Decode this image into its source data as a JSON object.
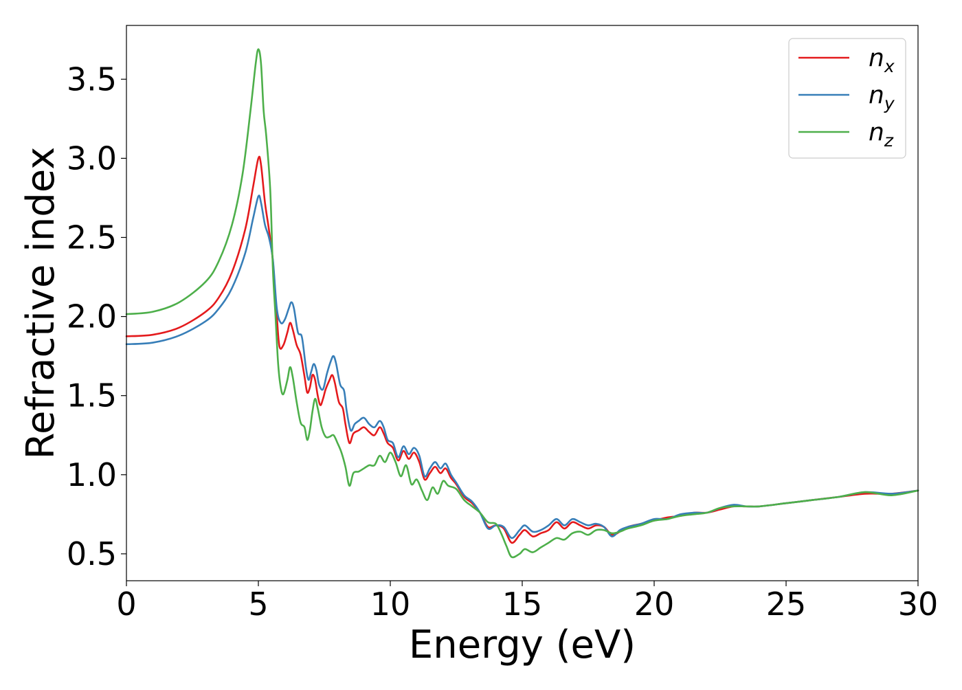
{
  "chart_data": {
    "type": "line",
    "title": "",
    "xlabel": "Energy (eV)",
    "ylabel": "Refractive index",
    "xlim": [
      0,
      30
    ],
    "ylim": [
      0.33,
      3.84
    ],
    "xticks": [
      0,
      5,
      10,
      15,
      20,
      25,
      30
    ],
    "yticks": [
      0.5,
      1.0,
      1.5,
      2.0,
      2.5,
      3.0,
      3.5
    ],
    "xtick_labels": [
      "0",
      "5",
      "10",
      "15",
      "20",
      "25",
      "30"
    ],
    "ytick_labels": [
      "0.5",
      "1.0",
      "1.5",
      "2.0",
      "2.5",
      "3.0",
      "3.5"
    ],
    "grid": false,
    "legend_position": "top-right",
    "series": [
      {
        "name": "n_x",
        "label_base": "n",
        "label_sub": "x",
        "color": "#e41a1c",
        "points": [
          [
            0,
            1.875
          ],
          [
            1,
            1.885
          ],
          [
            2,
            1.93
          ],
          [
            3,
            2.03
          ],
          [
            3.5,
            2.12
          ],
          [
            4,
            2.28
          ],
          [
            4.5,
            2.55
          ],
          [
            4.8,
            2.82
          ],
          [
            5.0,
            3.0
          ],
          [
            5.1,
            2.96
          ],
          [
            5.25,
            2.72
          ],
          [
            5.4,
            2.55
          ],
          [
            5.55,
            2.35
          ],
          [
            5.7,
            2.0
          ],
          [
            5.8,
            1.81
          ],
          [
            5.95,
            1.82
          ],
          [
            6.1,
            1.9
          ],
          [
            6.2,
            1.96
          ],
          [
            6.3,
            1.92
          ],
          [
            6.45,
            1.82
          ],
          [
            6.6,
            1.76
          ],
          [
            6.75,
            1.62
          ],
          [
            6.85,
            1.52
          ],
          [
            6.95,
            1.55
          ],
          [
            7.05,
            1.63
          ],
          [
            7.15,
            1.6
          ],
          [
            7.25,
            1.5
          ],
          [
            7.35,
            1.44
          ],
          [
            7.45,
            1.48
          ],
          [
            7.55,
            1.54
          ],
          [
            7.7,
            1.6
          ],
          [
            7.8,
            1.63
          ],
          [
            7.9,
            1.58
          ],
          [
            8.05,
            1.46
          ],
          [
            8.2,
            1.42
          ],
          [
            8.3,
            1.32
          ],
          [
            8.45,
            1.2
          ],
          [
            8.6,
            1.26
          ],
          [
            8.8,
            1.28
          ],
          [
            9.0,
            1.3
          ],
          [
            9.2,
            1.27
          ],
          [
            9.4,
            1.25
          ],
          [
            9.6,
            1.3
          ],
          [
            9.75,
            1.26
          ],
          [
            9.9,
            1.2
          ],
          [
            10.1,
            1.17
          ],
          [
            10.3,
            1.09
          ],
          [
            10.5,
            1.15
          ],
          [
            10.7,
            1.1
          ],
          [
            10.9,
            1.14
          ],
          [
            11.1,
            1.08
          ],
          [
            11.3,
            0.97
          ],
          [
            11.5,
            1.01
          ],
          [
            11.7,
            1.05
          ],
          [
            11.9,
            1.01
          ],
          [
            12.1,
            1.04
          ],
          [
            12.3,
            0.98
          ],
          [
            12.5,
            0.94
          ],
          [
            12.8,
            0.86
          ],
          [
            13.1,
            0.82
          ],
          [
            13.4,
            0.76
          ],
          [
            13.7,
            0.67
          ],
          [
            14.0,
            0.68
          ],
          [
            14.3,
            0.66
          ],
          [
            14.6,
            0.57
          ],
          [
            14.9,
            0.62
          ],
          [
            15.1,
            0.65
          ],
          [
            15.4,
            0.61
          ],
          [
            15.7,
            0.63
          ],
          [
            16.0,
            0.65
          ],
          [
            16.3,
            0.7
          ],
          [
            16.6,
            0.66
          ],
          [
            16.9,
            0.7
          ],
          [
            17.2,
            0.68
          ],
          [
            17.5,
            0.66
          ],
          [
            17.8,
            0.68
          ],
          [
            18.1,
            0.67
          ],
          [
            18.4,
            0.62
          ],
          [
            18.7,
            0.64
          ],
          [
            19.0,
            0.67
          ],
          [
            19.5,
            0.69
          ],
          [
            20.0,
            0.71
          ],
          [
            20.5,
            0.73
          ],
          [
            21.0,
            0.74
          ],
          [
            21.5,
            0.76
          ],
          [
            22.0,
            0.76
          ],
          [
            22.5,
            0.78
          ],
          [
            23.0,
            0.8
          ],
          [
            23.5,
            0.8
          ],
          [
            24.0,
            0.8
          ],
          [
            25.0,
            0.82
          ],
          [
            26.0,
            0.84
          ],
          [
            27.0,
            0.86
          ],
          [
            28.0,
            0.88
          ],
          [
            29.0,
            0.88
          ],
          [
            30.0,
            0.9
          ]
        ]
      },
      {
        "name": "n_y",
        "label_base": "n",
        "label_sub": "y",
        "color": "#377eb8",
        "points": [
          [
            0,
            1.825
          ],
          [
            1,
            1.835
          ],
          [
            2,
            1.88
          ],
          [
            3,
            1.97
          ],
          [
            3.5,
            2.05
          ],
          [
            4,
            2.18
          ],
          [
            4.5,
            2.4
          ],
          [
            4.8,
            2.62
          ],
          [
            5.0,
            2.76
          ],
          [
            5.1,
            2.72
          ],
          [
            5.25,
            2.58
          ],
          [
            5.4,
            2.5
          ],
          [
            5.55,
            2.36
          ],
          [
            5.7,
            2.05
          ],
          [
            5.85,
            1.96
          ],
          [
            6.0,
            1.98
          ],
          [
            6.15,
            2.05
          ],
          [
            6.25,
            2.09
          ],
          [
            6.35,
            2.05
          ],
          [
            6.5,
            1.9
          ],
          [
            6.65,
            1.87
          ],
          [
            6.8,
            1.68
          ],
          [
            6.9,
            1.6
          ],
          [
            7.0,
            1.65
          ],
          [
            7.1,
            1.7
          ],
          [
            7.2,
            1.66
          ],
          [
            7.3,
            1.57
          ],
          [
            7.45,
            1.54
          ],
          [
            7.6,
            1.64
          ],
          [
            7.75,
            1.72
          ],
          [
            7.85,
            1.75
          ],
          [
            7.95,
            1.7
          ],
          [
            8.1,
            1.57
          ],
          [
            8.25,
            1.53
          ],
          [
            8.35,
            1.4
          ],
          [
            8.5,
            1.28
          ],
          [
            8.65,
            1.32
          ],
          [
            8.8,
            1.34
          ],
          [
            9.0,
            1.36
          ],
          [
            9.2,
            1.32
          ],
          [
            9.4,
            1.3
          ],
          [
            9.6,
            1.34
          ],
          [
            9.75,
            1.3
          ],
          [
            9.9,
            1.22
          ],
          [
            10.1,
            1.2
          ],
          [
            10.3,
            1.11
          ],
          [
            10.5,
            1.18
          ],
          [
            10.7,
            1.13
          ],
          [
            10.9,
            1.17
          ],
          [
            11.1,
            1.12
          ],
          [
            11.3,
            0.99
          ],
          [
            11.5,
            1.04
          ],
          [
            11.7,
            1.08
          ],
          [
            11.9,
            1.04
          ],
          [
            12.1,
            1.07
          ],
          [
            12.3,
            1.0
          ],
          [
            12.5,
            0.95
          ],
          [
            12.8,
            0.87
          ],
          [
            13.1,
            0.83
          ],
          [
            13.4,
            0.76
          ],
          [
            13.7,
            0.66
          ],
          [
            14.0,
            0.68
          ],
          [
            14.3,
            0.67
          ],
          [
            14.6,
            0.6
          ],
          [
            14.9,
            0.65
          ],
          [
            15.1,
            0.68
          ],
          [
            15.4,
            0.64
          ],
          [
            15.7,
            0.65
          ],
          [
            16.0,
            0.68
          ],
          [
            16.3,
            0.72
          ],
          [
            16.6,
            0.68
          ],
          [
            16.9,
            0.72
          ],
          [
            17.2,
            0.7
          ],
          [
            17.5,
            0.68
          ],
          [
            17.8,
            0.69
          ],
          [
            18.1,
            0.67
          ],
          [
            18.4,
            0.61
          ],
          [
            18.7,
            0.65
          ],
          [
            19.0,
            0.67
          ],
          [
            19.5,
            0.69
          ],
          [
            20.0,
            0.72
          ],
          [
            20.5,
            0.72
          ],
          [
            21.0,
            0.75
          ],
          [
            21.5,
            0.76
          ],
          [
            22.0,
            0.76
          ],
          [
            22.5,
            0.79
          ],
          [
            23.0,
            0.81
          ],
          [
            23.5,
            0.8
          ],
          [
            24.0,
            0.8
          ],
          [
            25.0,
            0.82
          ],
          [
            26.0,
            0.84
          ],
          [
            27.0,
            0.86
          ],
          [
            28.0,
            0.89
          ],
          [
            29.0,
            0.88
          ],
          [
            30.0,
            0.9
          ]
        ]
      },
      {
        "name": "n_z",
        "label_base": "n",
        "label_sub": "z",
        "color": "#4daf4a",
        "points": [
          [
            0,
            2.015
          ],
          [
            1,
            2.03
          ],
          [
            2,
            2.09
          ],
          [
            3,
            2.22
          ],
          [
            3.5,
            2.35
          ],
          [
            4,
            2.58
          ],
          [
            4.4,
            2.9
          ],
          [
            4.7,
            3.3
          ],
          [
            4.9,
            3.6
          ],
          [
            5.0,
            3.69
          ],
          [
            5.1,
            3.6
          ],
          [
            5.2,
            3.3
          ],
          [
            5.3,
            3.14
          ],
          [
            5.45,
            2.8
          ],
          [
            5.55,
            2.3
          ],
          [
            5.65,
            2.0
          ],
          [
            5.75,
            1.7
          ],
          [
            5.85,
            1.55
          ],
          [
            5.95,
            1.51
          ],
          [
            6.1,
            1.6
          ],
          [
            6.2,
            1.68
          ],
          [
            6.3,
            1.62
          ],
          [
            6.45,
            1.46
          ],
          [
            6.6,
            1.33
          ],
          [
            6.75,
            1.3
          ],
          [
            6.85,
            1.22
          ],
          [
            6.95,
            1.28
          ],
          [
            7.05,
            1.4
          ],
          [
            7.15,
            1.48
          ],
          [
            7.25,
            1.42
          ],
          [
            7.4,
            1.3
          ],
          [
            7.55,
            1.24
          ],
          [
            7.7,
            1.24
          ],
          [
            7.85,
            1.25
          ],
          [
            8.0,
            1.2
          ],
          [
            8.15,
            1.14
          ],
          [
            8.3,
            1.05
          ],
          [
            8.45,
            0.93
          ],
          [
            8.6,
            1.01
          ],
          [
            8.8,
            1.02
          ],
          [
            9.0,
            1.04
          ],
          [
            9.2,
            1.06
          ],
          [
            9.4,
            1.06
          ],
          [
            9.6,
            1.12
          ],
          [
            9.8,
            1.08
          ],
          [
            10.0,
            1.14
          ],
          [
            10.2,
            1.08
          ],
          [
            10.4,
            0.99
          ],
          [
            10.6,
            1.06
          ],
          [
            10.8,
            0.94
          ],
          [
            11.0,
            0.97
          ],
          [
            11.2,
            0.9
          ],
          [
            11.4,
            0.84
          ],
          [
            11.6,
            0.92
          ],
          [
            11.8,
            0.88
          ],
          [
            12.0,
            0.96
          ],
          [
            12.2,
            0.93
          ],
          [
            12.5,
            0.91
          ],
          [
            12.8,
            0.84
          ],
          [
            13.1,
            0.8
          ],
          [
            13.4,
            0.76
          ],
          [
            13.7,
            0.7
          ],
          [
            14.0,
            0.69
          ],
          [
            14.2,
            0.63
          ],
          [
            14.4,
            0.55
          ],
          [
            14.6,
            0.48
          ],
          [
            14.9,
            0.5
          ],
          [
            15.1,
            0.53
          ],
          [
            15.4,
            0.51
          ],
          [
            15.7,
            0.54
          ],
          [
            16.0,
            0.57
          ],
          [
            16.3,
            0.6
          ],
          [
            16.6,
            0.59
          ],
          [
            16.9,
            0.63
          ],
          [
            17.2,
            0.64
          ],
          [
            17.5,
            0.62
          ],
          [
            17.8,
            0.65
          ],
          [
            18.1,
            0.65
          ],
          [
            18.4,
            0.63
          ],
          [
            18.7,
            0.64
          ],
          [
            19.0,
            0.66
          ],
          [
            19.5,
            0.68
          ],
          [
            20.0,
            0.71
          ],
          [
            20.5,
            0.72
          ],
          [
            21.0,
            0.74
          ],
          [
            21.5,
            0.75
          ],
          [
            22.0,
            0.76
          ],
          [
            22.5,
            0.79
          ],
          [
            23.0,
            0.8
          ],
          [
            23.5,
            0.8
          ],
          [
            24.0,
            0.8
          ],
          [
            25.0,
            0.82
          ],
          [
            26.0,
            0.84
          ],
          [
            27.0,
            0.86
          ],
          [
            28.0,
            0.89
          ],
          [
            29.0,
            0.87
          ],
          [
            30.0,
            0.9
          ]
        ]
      }
    ]
  }
}
